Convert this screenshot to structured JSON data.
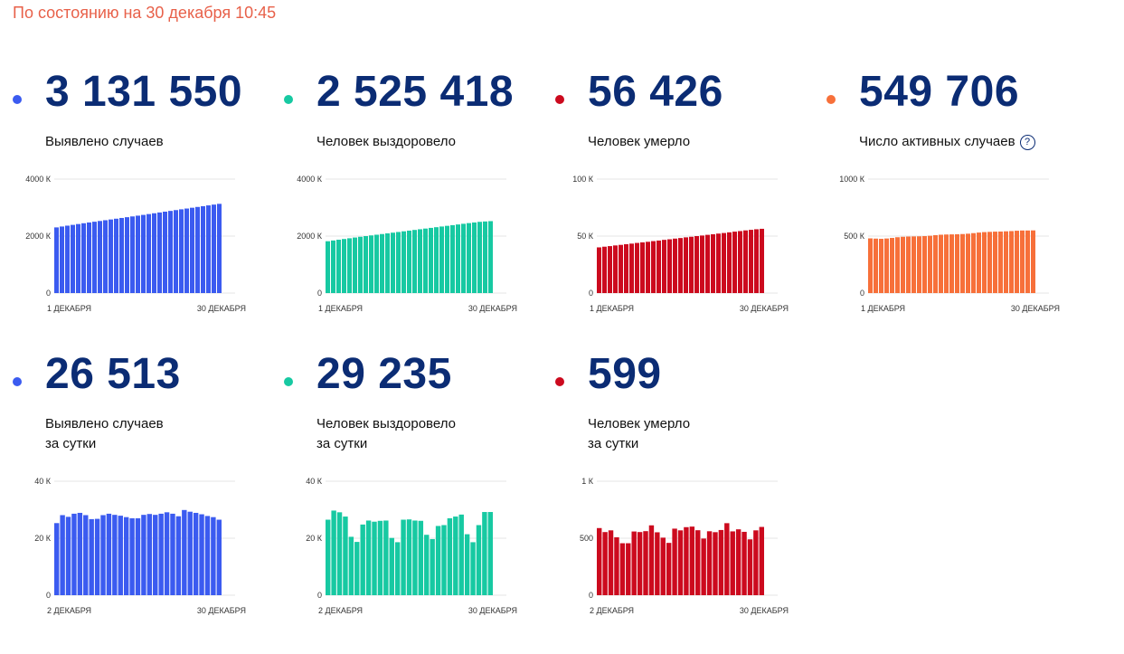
{
  "header": {
    "status_text": "По состоянию на 30 декабря 10:45"
  },
  "panels": [
    {
      "id": "cases",
      "value": "3 131 550",
      "label_line1": "Выявлено случаев",
      "label_line2": "",
      "color": "#3b5bf0",
      "has_help": false,
      "chart_data": {
        "type": "bar",
        "yticks": [
          "4000 К",
          "2000 К",
          "0"
        ],
        "ylim": [
          0,
          4000
        ],
        "xlabel_start": "1 ДЕКАБРЯ",
        "xlabel_end": "30 ДЕКАБРЯ",
        "values": [
          2305,
          2336,
          2366,
          2394,
          2423,
          2451,
          2478,
          2504,
          2530,
          2557,
          2583,
          2610,
          2636,
          2663,
          2690,
          2717,
          2744,
          2773,
          2801,
          2829,
          2857,
          2884,
          2912,
          2940,
          2967,
          2995,
          3023,
          3050,
          3078,
          3105,
          3132
        ]
      }
    },
    {
      "id": "recovered",
      "value": "2 525 418",
      "label_line1": "Человек выздоровело",
      "label_line2": "",
      "color": "#17c9a2",
      "has_help": false,
      "chart_data": {
        "type": "bar",
        "yticks": [
          "4000 К",
          "2000 К",
          "0"
        ],
        "ylim": [
          0,
          4000
        ],
        "xlabel_start": "1 ДЕКАБРЯ",
        "xlabel_end": "30 ДЕКАБРЯ",
        "values": [
          1820,
          1846,
          1872,
          1898,
          1924,
          1950,
          1976,
          2000,
          2024,
          2048,
          2072,
          2096,
          2120,
          2144,
          2168,
          2192,
          2216,
          2240,
          2264,
          2288,
          2312,
          2336,
          2360,
          2384,
          2408,
          2432,
          2456,
          2478,
          2500,
          2513,
          2525
        ]
      }
    },
    {
      "id": "deaths",
      "value": "56 426",
      "label_line1": "Человек умерло",
      "label_line2": "",
      "color": "#cc0a1e",
      "has_help": false,
      "chart_data": {
        "type": "bar",
        "yticks": [
          "100 К",
          "50 К",
          "0"
        ],
        "ylim": [
          0,
          100
        ],
        "xlabel_start": "1 ДЕКАБРЯ",
        "xlabel_end": "30 ДЕКАБРЯ",
        "values": [
          40.1,
          40.7,
          41.2,
          41.8,
          42.3,
          42.9,
          43.4,
          44.0,
          44.5,
          45.0,
          45.6,
          46.1,
          46.7,
          47.2,
          47.8,
          48.3,
          48.9,
          49.4,
          50.0,
          50.5,
          51.1,
          51.6,
          52.2,
          52.7,
          53.3,
          53.9,
          54.4,
          55.0,
          55.5,
          56.0,
          56.4
        ]
      }
    },
    {
      "id": "active",
      "value": "549 706",
      "label_line1": "Число активных случаев",
      "label_line2": "",
      "color": "#f7703a",
      "has_help": true,
      "chart_data": {
        "type": "bar",
        "yticks": [
          "1000 К",
          "500 К",
          "0"
        ],
        "ylim": [
          0,
          1000
        ],
        "xlabel_start": "1 ДЕКАБРЯ",
        "xlabel_end": "30 ДЕКАБРЯ",
        "values": [
          480,
          478,
          476,
          479,
          484,
          490,
          494,
          496,
          497,
          498,
          500,
          503,
          508,
          512,
          514,
          515,
          516,
          518,
          521,
          526,
          531,
          535,
          537,
          539,
          540,
          542,
          544,
          547,
          549,
          549,
          550
        ]
      }
    },
    {
      "id": "cases_daily",
      "value": "26 513",
      "label_line1": "Выявлено случаев",
      "label_line2": "за сутки",
      "color": "#3b5bf0",
      "has_help": false,
      "chart_data": {
        "type": "bar",
        "yticks": [
          "40 К",
          "20 К",
          "0"
        ],
        "ylim": [
          0,
          40
        ],
        "xlabel_start": "2 ДЕКАБРЯ",
        "xlabel_end": "30 ДЕКАБРЯ",
        "values": [
          25.3,
          28.1,
          27.5,
          28.6,
          28.9,
          28.1,
          26.7,
          26.8,
          28.1,
          28.6,
          28.2,
          27.9,
          27.4,
          27.0,
          27.0,
          28.2,
          28.5,
          28.2,
          28.6,
          29.1,
          28.6,
          27.7,
          29.9,
          29.3,
          28.9,
          28.4,
          27.8,
          27.4,
          26.5
        ]
      }
    },
    {
      "id": "recovered_daily",
      "value": "29 235",
      "label_line1": "Человек выздоровело",
      "label_line2": "за сутки",
      "color": "#17c9a2",
      "has_help": false,
      "chart_data": {
        "type": "bar",
        "yticks": [
          "40 К",
          "20 К",
          "0"
        ],
        "ylim": [
          0,
          40
        ],
        "xlabel_start": "2 ДЕКАБРЯ",
        "xlabel_end": "30 ДЕКАБРЯ",
        "values": [
          26.5,
          29.7,
          29.1,
          27.6,
          20.5,
          18.7,
          24.8,
          26.2,
          25.8,
          26.1,
          26.2,
          20.1,
          18.6,
          26.5,
          26.6,
          26.2,
          26.1,
          21.2,
          19.7,
          24.3,
          24.6,
          27.0,
          27.6,
          28.3,
          21.4,
          18.6,
          24.6,
          29.2,
          29.2
        ]
      }
    },
    {
      "id": "deaths_daily",
      "value": "599",
      "label_line1": "Человек умерло",
      "label_line2": "за сутки",
      "color": "#cc0a1e",
      "has_help": false,
      "chart_data": {
        "type": "bar",
        "yticks": [
          "1 К",
          "500",
          "0"
        ],
        "ylim": [
          0,
          1000
        ],
        "xlabel_start": "2 ДЕКАБРЯ",
        "xlabel_end": "30 ДЕКАБРЯ",
        "values": [
          589,
          554,
          569,
          508,
          456,
          456,
          559,
          554,
          562,
          613,
          552,
          505,
          459,
          584,
          569,
          597,
          602,
          570,
          497,
          561,
          553,
          572,
          632,
          560,
          578,
          556,
          490,
          569,
          599
        ]
      }
    }
  ]
}
